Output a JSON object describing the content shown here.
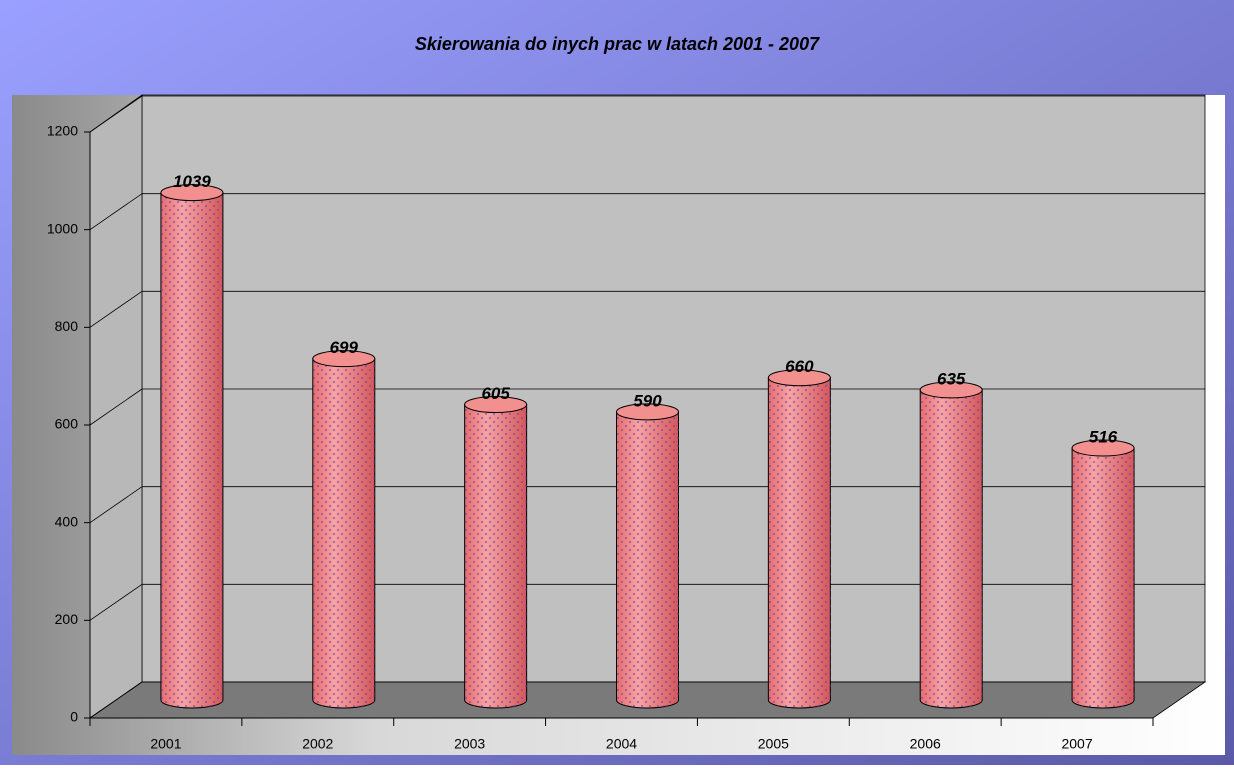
{
  "chart_data": {
    "type": "bar",
    "title": "Skierowania do inych prac w latach 2001 - 2007",
    "categories": [
      "2001",
      "2002",
      "2003",
      "2004",
      "2005",
      "2006",
      "2007"
    ],
    "values": [
      1039,
      699,
      605,
      590,
      660,
      635,
      516
    ],
    "color": "#f08080",
    "ylim": [
      0,
      1200
    ],
    "yticks": [
      0,
      200,
      400,
      600,
      800,
      1000,
      1200
    ],
    "grid": true
  }
}
